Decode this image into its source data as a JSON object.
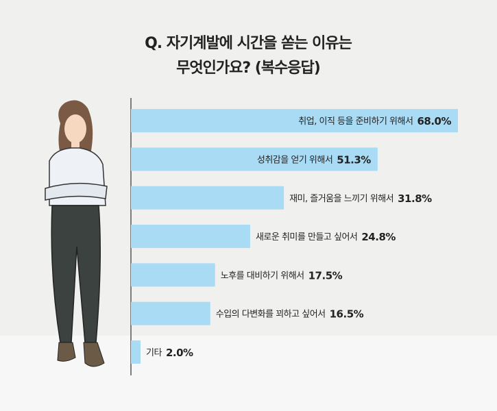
{
  "chart_data": {
    "type": "barh",
    "title": [
      "Q. 자기계발에 시간을 쏟는 이유는",
      "무엇인가요? (복수응답)"
    ],
    "categories": [
      "취업, 이직 등을 준비하기 위해서",
      "성취감을 얻기 위해서",
      "재미, 즐거움을 느끼기 위해서",
      "새로운 취미를 만들고 싶어서",
      "노후를 대비하기 위해서",
      "수입의 다변화를 꾀하고 싶어서",
      "기타"
    ],
    "values": [
      68.0,
      51.3,
      31.8,
      24.8,
      17.5,
      16.5,
      2.0
    ],
    "value_labels": [
      "68.0%",
      "51.3%",
      "31.8%",
      "24.8%",
      "17.5%",
      "16.5%",
      "2.0%"
    ],
    "color": "#a9dbf5",
    "xlim": [
      0,
      68
    ]
  }
}
